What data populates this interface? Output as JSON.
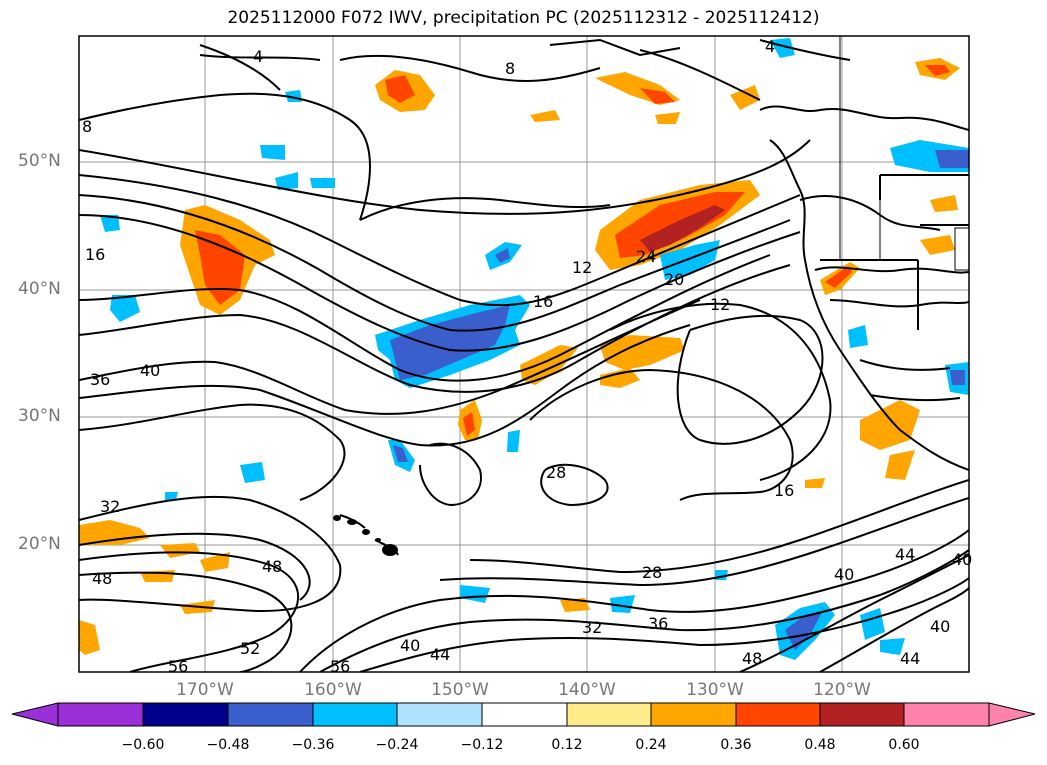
{
  "title": "2025112000 F072 IWV, precipitation PC (2025112312 - 2025112412)",
  "lat_labels": [
    "50°N",
    "40°N",
    "30°N",
    "20°N"
  ],
  "lon_labels": [
    "170°W",
    "160°W",
    "150°W",
    "140°W",
    "130°W",
    "120°W"
  ],
  "colorbar": {
    "ticks": [
      "−0.60",
      "−0.48",
      "−0.36",
      "−0.24",
      "−0.12",
      "0.12",
      "0.24",
      "0.36",
      "0.48",
      "0.60"
    ],
    "colors": [
      "#9b30d9",
      "#00008b",
      "#3a5fcd",
      "#00bfff",
      "#b0e2ff",
      "#ffffff",
      "#ffeb8a",
      "#ffa500",
      "#ff4500",
      "#b22222",
      "#ff82ab"
    ]
  },
  "contour_labels": [
    "4",
    "4",
    "8",
    "8",
    "16",
    "32",
    "36",
    "40",
    "48",
    "48",
    "52",
    "56",
    "56",
    "40",
    "44",
    "16",
    "12",
    "24",
    "20",
    "12",
    "28",
    "28",
    "16",
    "32",
    "36",
    "40",
    "44",
    "48",
    "40",
    "44",
    "40"
  ]
}
